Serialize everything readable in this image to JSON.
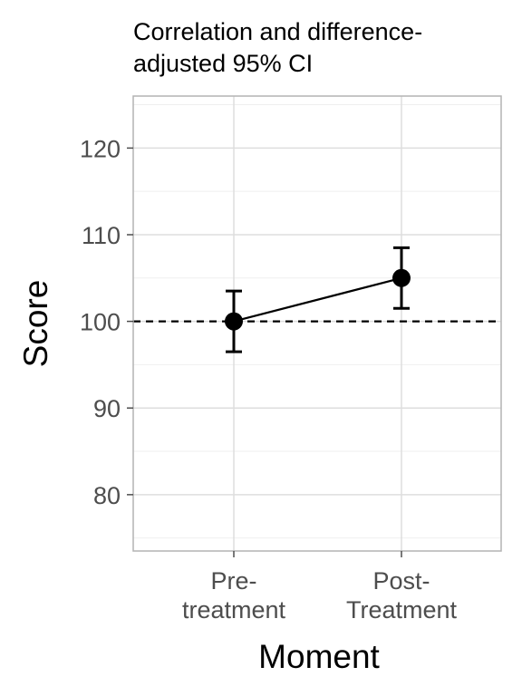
{
  "chart_data": {
    "type": "line",
    "title_lines": [
      "Correlation and difference-",
      "adjusted 95% CI"
    ],
    "xlabel": "Moment",
    "ylabel": "Score",
    "categories": [
      [
        "Pre-",
        "treatment"
      ],
      [
        "Post-",
        "Treatment"
      ]
    ],
    "series": [
      {
        "values": [
          100,
          105
        ],
        "ci_lower": [
          96.5,
          101.5
        ],
        "ci_upper": [
          103.5,
          108.5
        ],
        "color": "#000000"
      }
    ],
    "reference_line": {
      "y": 100,
      "style": "dashed",
      "color": "#000000"
    },
    "ylim": [
      73.5,
      126
    ],
    "y_ticks": [
      80,
      90,
      100,
      110,
      120
    ],
    "y_minor_ticks": [
      75,
      85,
      95,
      105,
      115,
      125
    ],
    "grid": true,
    "theme": {
      "panel_border": "#b3b3b3",
      "grid_major": "#dedede",
      "grid_minor": "#efefef",
      "tick_color": "#4d4d4d"
    }
  }
}
